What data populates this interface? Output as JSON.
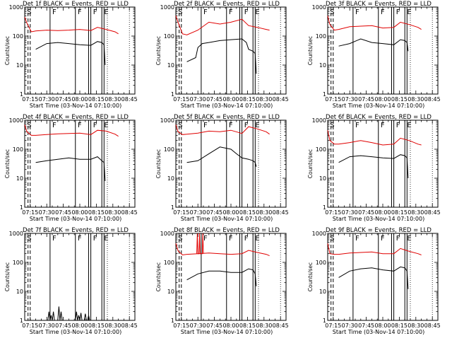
{
  "chart_data": [
    {
      "type": "line",
      "title": "Det 1f BLACK = Events, RED = LLD",
      "xlabel": "Start Time (03-Nov-14 07:10:00)",
      "ylabel": "Counts/sec",
      "xticks": [
        "07:15",
        "07:30",
        "07:45",
        "08:00",
        "08:15",
        "08:30",
        "08:45"
      ],
      "yticks": [
        "1",
        "10",
        "100",
        "1000"
      ],
      "ylim": [
        1,
        1000
      ],
      "yscale": "log",
      "marker_labels": [
        "S",
        "F",
        "F",
        "F",
        "E"
      ],
      "series": [
        {
          "name": "LLD",
          "color": "#e00000",
          "x": [
            0,
            2,
            6,
            10,
            20,
            30,
            40,
            50,
            60,
            66,
            74,
            82,
            85
          ],
          "y": [
            450,
            280,
            140,
            150,
            160,
            155,
            160,
            170,
            155,
            200,
            170,
            140,
            120
          ]
        },
        {
          "name": "Events",
          "color": "#000000",
          "x": [
            10,
            20,
            30,
            40,
            50,
            60,
            66,
            70,
            72,
            73
          ],
          "y": [
            35,
            55,
            60,
            55,
            50,
            48,
            65,
            60,
            50,
            10
          ]
        }
      ]
    },
    {
      "type": "line",
      "title": "Det 2f BLACK = Events, RED = LLD",
      "xlabel": "Start Time (03-Nov-14 07:10:00)",
      "ylabel": "Counts/sec",
      "xticks": [
        "07:15",
        "07:30",
        "07:45",
        "08:00",
        "08:15",
        "08:30",
        "08:45"
      ],
      "yticks": [
        "1",
        "10",
        "100",
        "1000"
      ],
      "ylim": [
        1,
        1000
      ],
      "yscale": "log",
      "marker_labels": [
        "S",
        "F",
        "F",
        "F",
        "E"
      ],
      "series": [
        {
          "name": "LLD",
          "color": "#e00000",
          "x": [
            0,
            2,
            6,
            10,
            20,
            30,
            40,
            50,
            60,
            66,
            74,
            82,
            85
          ],
          "y": [
            500,
            300,
            120,
            110,
            160,
            300,
            260,
            300,
            380,
            230,
            200,
            170,
            160
          ]
        },
        {
          "name": "Events",
          "color": "#000000",
          "x": [
            10,
            18,
            20,
            24,
            30,
            40,
            50,
            60,
            64,
            66,
            70,
            72,
            73
          ],
          "y": [
            13,
            18,
            40,
            55,
            60,
            70,
            75,
            80,
            60,
            35,
            30,
            25,
            5
          ]
        }
      ]
    },
    {
      "type": "line",
      "title": "Det 3f BLACK = Events, RED = LLD",
      "xlabel": "Start Time (03-Nov-14 07:10:00)",
      "ylabel": "Counts/sec",
      "xticks": [
        "07:15",
        "07:30",
        "07:45",
        "08:00",
        "08:15",
        "08:30",
        "08:45"
      ],
      "yticks": [
        "1",
        "10",
        "100",
        "1000"
      ],
      "ylim": [
        1,
        1000
      ],
      "yscale": "log",
      "marker_labels": [
        "S",
        "F",
        "F",
        "F",
        "E"
      ],
      "series": [
        {
          "name": "LLD",
          "color": "#e00000",
          "x": [
            0,
            2,
            6,
            10,
            20,
            30,
            40,
            50,
            60,
            66,
            74,
            82,
            85
          ],
          "y": [
            500,
            250,
            160,
            170,
            210,
            220,
            230,
            190,
            200,
            300,
            250,
            200,
            170
          ]
        },
        {
          "name": "Events",
          "color": "#000000",
          "x": [
            10,
            20,
            30,
            40,
            50,
            60,
            66,
            70,
            72,
            73
          ],
          "y": [
            45,
            55,
            80,
            60,
            55,
            50,
            75,
            70,
            60,
            30
          ]
        }
      ]
    },
    {
      "type": "line",
      "title": "Det 4f BLACK = Events, RED = LLD",
      "xlabel": "Start Time (03-Nov-14 07:10:00)",
      "ylabel": "Counts/sec",
      "xticks": [
        "07:15",
        "07:30",
        "07:45",
        "08:00",
        "08:15",
        "08:30",
        "08:45"
      ],
      "yticks": [
        "1",
        "10",
        "100",
        "1000"
      ],
      "ylim": [
        1,
        1000
      ],
      "yscale": "log",
      "marker_labels": [
        "S",
        "F",
        "F",
        "F",
        "E"
      ],
      "series": [
        {
          "name": "LLD",
          "color": "#e00000",
          "x": [
            0,
            2,
            6,
            10,
            20,
            30,
            40,
            50,
            60,
            66,
            74,
            82,
            85
          ],
          "y": [
            700,
            400,
            300,
            300,
            320,
            340,
            350,
            360,
            320,
            450,
            420,
            330,
            280
          ]
        },
        {
          "name": "Events",
          "color": "#000000",
          "x": [
            10,
            20,
            30,
            40,
            50,
            60,
            66,
            70,
            72,
            73
          ],
          "y": [
            35,
            40,
            45,
            50,
            45,
            45,
            55,
            40,
            35,
            8
          ]
        }
      ]
    },
    {
      "type": "line",
      "title": "Det 5f BLACK = Events, RED = LLD",
      "xlabel": "Start Time (03-Nov-14 07:10:00)",
      "ylabel": "Counts/sec",
      "xticks": [
        "07:15",
        "07:30",
        "07:45",
        "08:00",
        "08:15",
        "08:30",
        "08:45"
      ],
      "yticks": [
        "1",
        "10",
        "100",
        "1000"
      ],
      "ylim": [
        1,
        1000
      ],
      "yscale": "log",
      "marker_labels": [
        "S",
        "F",
        "F",
        "F",
        "E"
      ],
      "series": [
        {
          "name": "LLD",
          "color": "#e00000",
          "x": [
            0,
            2,
            6,
            10,
            20,
            30,
            40,
            50,
            60,
            66,
            74,
            82,
            85
          ],
          "y": [
            700,
            400,
            320,
            330,
            360,
            420,
            400,
            450,
            350,
            600,
            500,
            400,
            330
          ]
        },
        {
          "name": "Events",
          "color": "#000000",
          "x": [
            10,
            20,
            30,
            40,
            50,
            55,
            60,
            66,
            70,
            72,
            73
          ],
          "y": [
            35,
            40,
            70,
            120,
            100,
            70,
            50,
            45,
            40,
            35,
            25
          ]
        }
      ]
    },
    {
      "type": "line",
      "title": "Det 6f BLACK = Events, RED = LLD",
      "xlabel": "Start Time (03-Nov-14 07:10:00)",
      "ylabel": "Counts/sec",
      "xticks": [
        "07:15",
        "07:30",
        "07:45",
        "08:00",
        "08:15",
        "08:30",
        "08:45"
      ],
      "yticks": [
        "1",
        "10",
        "100",
        "1000"
      ],
      "ylim": [
        1,
        1000
      ],
      "yscale": "log",
      "marker_labels": [
        "S",
        "F",
        "F",
        "F",
        "E"
      ],
      "series": [
        {
          "name": "LLD",
          "color": "#e00000",
          "x": [
            0,
            2,
            6,
            10,
            20,
            30,
            40,
            50,
            60,
            66,
            74,
            82,
            85
          ],
          "y": [
            450,
            200,
            150,
            150,
            170,
            200,
            170,
            140,
            150,
            240,
            200,
            150,
            140
          ]
        },
        {
          "name": "Events",
          "color": "#000000",
          "x": [
            10,
            20,
            30,
            40,
            50,
            60,
            66,
            70,
            72,
            73
          ],
          "y": [
            35,
            55,
            60,
            55,
            50,
            48,
            65,
            60,
            50,
            10
          ]
        }
      ]
    },
    {
      "type": "line",
      "title": "Det 7f BLACK = Events, RED = LLD",
      "xlabel": "Start Time (03-Nov-14 07:10:00)",
      "ylabel": "Counts/sec",
      "xticks": [
        "07:15",
        "07:30",
        "07:45",
        "08:00",
        "08:15",
        "08:30",
        "08:45"
      ],
      "yticks": [
        "1",
        "10",
        "100",
        "1000"
      ],
      "ylim": [
        1,
        1000
      ],
      "yscale": "log",
      "marker_labels": [
        "S",
        "F",
        "F",
        "F",
        "E"
      ],
      "series": [
        {
          "name": "Events",
          "color": "#000000",
          "x": [
            21,
            22,
            23,
            24,
            25,
            26,
            27,
            30,
            31,
            32,
            33,
            34,
            35,
            46,
            47,
            48,
            49,
            50,
            51,
            52,
            54,
            55,
            56,
            57,
            58,
            59,
            60
          ],
          "y": [
            1,
            2,
            1,
            1.5,
            1,
            2,
            1,
            1,
            3,
            1,
            2,
            1,
            1,
            1,
            2,
            1,
            1.5,
            1,
            1.8,
            1,
            1,
            1.7,
            1,
            1,
            1.5,
            1,
            1
          ]
        }
      ]
    },
    {
      "type": "line",
      "title": "Det 8f BLACK = Events, RED = LLD",
      "xlabel": "Start Time (03-Nov-14 07:10:00)",
      "ylabel": "Counts/sec",
      "xticks": [
        "07:15",
        "07:30",
        "07:45",
        "08:00",
        "08:15",
        "08:30",
        "08:45"
      ],
      "yticks": [
        "1",
        "10",
        "100",
        "1000"
      ],
      "ylim": [
        1,
        1000
      ],
      "yscale": "log",
      "marker_labels": [
        "S",
        "F",
        "F",
        "F",
        "E"
      ],
      "series": [
        {
          "name": "LLD",
          "color": "#e00000",
          "x": [
            0,
            2,
            6,
            10,
            20,
            30,
            40,
            50,
            60,
            66,
            74,
            82,
            85
          ],
          "y": [
            450,
            250,
            180,
            190,
            200,
            210,
            200,
            190,
            200,
            260,
            220,
            190,
            170
          ]
        },
        {
          "name": "LLD spikes",
          "color": "#e00000",
          "x": [
            19,
            19.5,
            20,
            21,
            21.5,
            22,
            24,
            24.5,
            25
          ],
          "y": [
            200,
            1000,
            200,
            200,
            1000,
            200,
            200,
            1000,
            200
          ]
        },
        {
          "name": "Events",
          "color": "#000000",
          "x": [
            10,
            20,
            30,
            40,
            50,
            60,
            66,
            70,
            72,
            73
          ],
          "y": [
            25,
            40,
            50,
            50,
            45,
            45,
            60,
            55,
            40,
            15
          ]
        }
      ]
    },
    {
      "type": "line",
      "title": "Det 9f BLACK = Events, RED = LLD",
      "xlabel": "Start Time (03-Nov-14 07:10:00)",
      "ylabel": "Counts/sec",
      "xticks": [
        "07:15",
        "07:30",
        "07:45",
        "08:00",
        "08:15",
        "08:30",
        "08:45"
      ],
      "yticks": [
        "1",
        "10",
        "100",
        "1000"
      ],
      "ylim": [
        1,
        1000
      ],
      "yscale": "log",
      "marker_labels": [
        "S",
        "F",
        "F",
        "F",
        "E"
      ],
      "series": [
        {
          "name": "LLD",
          "color": "#e00000",
          "x": [
            0,
            2,
            6,
            10,
            20,
            30,
            40,
            50,
            60,
            66,
            74,
            82,
            85
          ],
          "y": [
            450,
            200,
            190,
            190,
            210,
            220,
            230,
            200,
            200,
            300,
            240,
            200,
            180
          ]
        },
        {
          "name": "Events",
          "color": "#000000",
          "x": [
            10,
            20,
            30,
            40,
            50,
            60,
            66,
            70,
            72,
            73
          ],
          "y": [
            30,
            50,
            60,
            65,
            55,
            50,
            70,
            65,
            50,
            12
          ]
        }
      ]
    }
  ]
}
